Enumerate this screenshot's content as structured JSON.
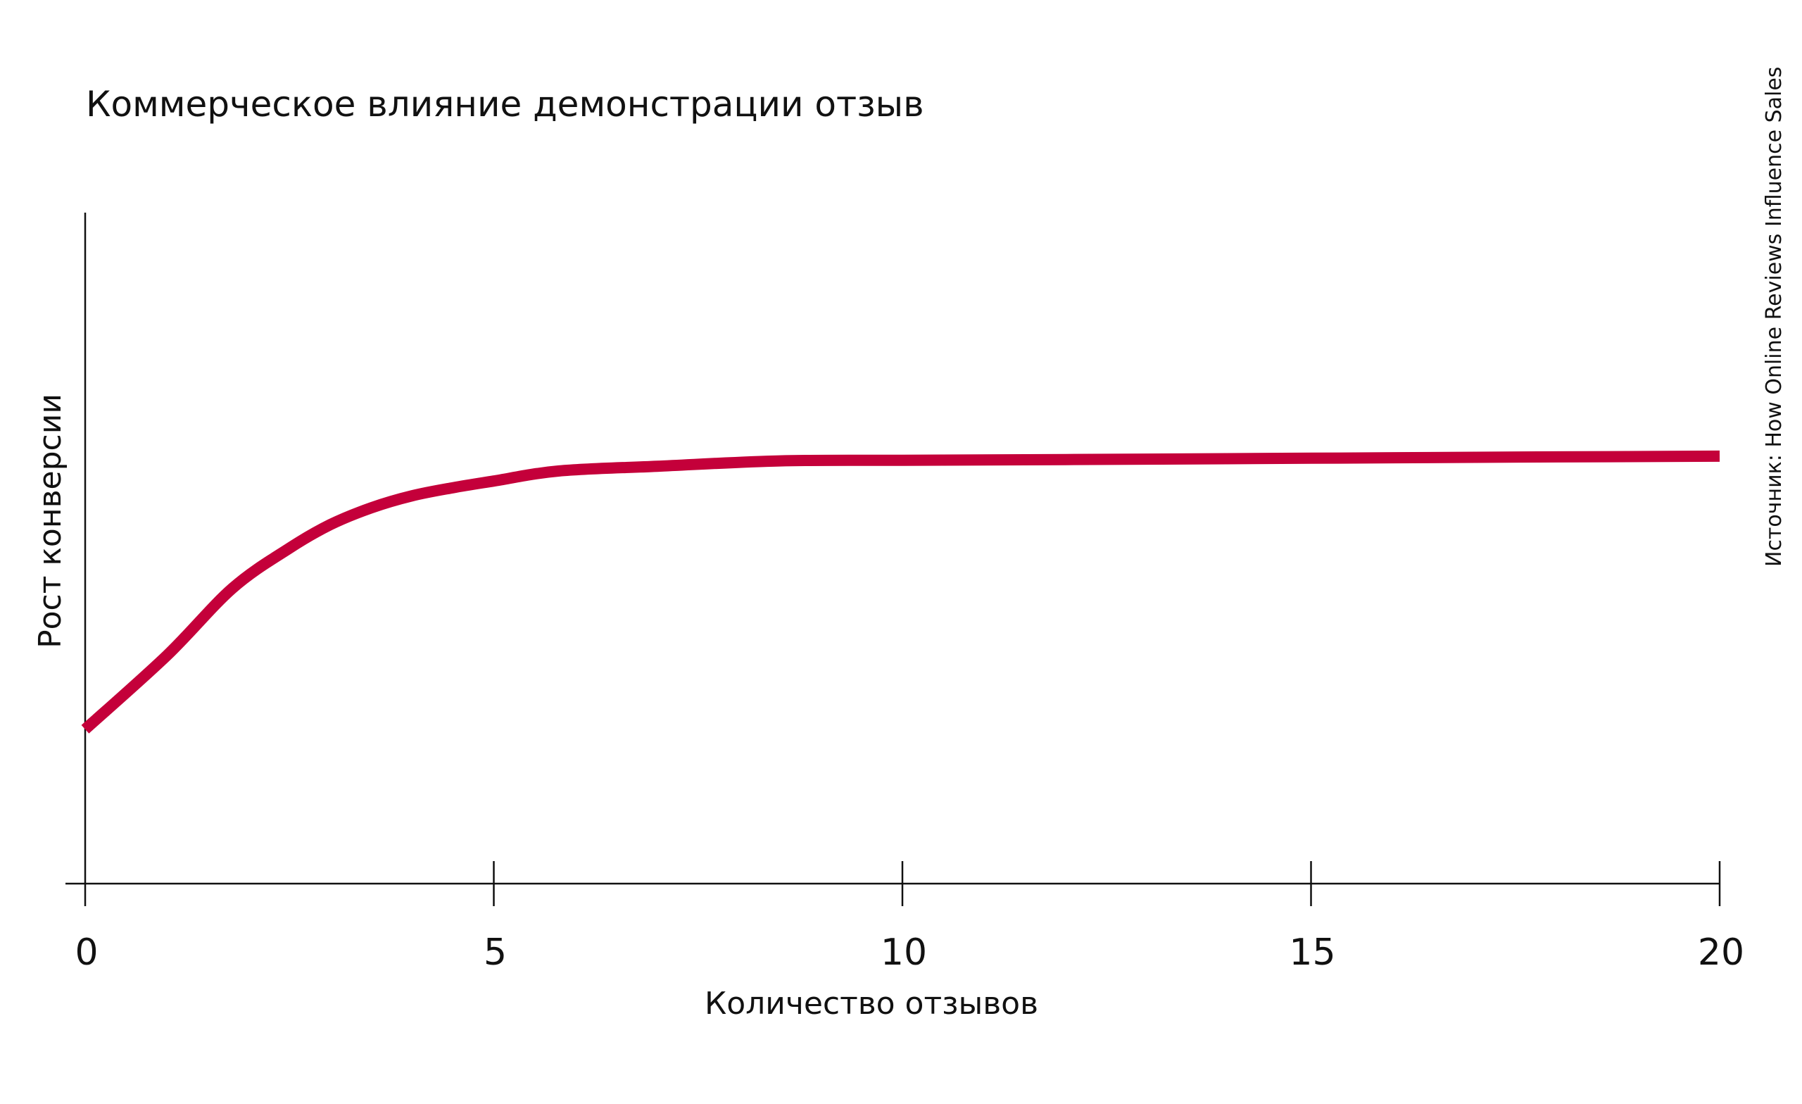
{
  "chart_data": {
    "type": "line",
    "title": "Коммерческое влияние демонстрации отзыв",
    "xlabel": "Количество отзывов",
    "ylabel": "Рост конверсии",
    "source": "Источник: How Online Reviews Influence Sales",
    "xlim": [
      0,
      20
    ],
    "ylim": [
      0,
      10
    ],
    "x_ticks": [
      0,
      5,
      10,
      15,
      20
    ],
    "x_tick_labels": [
      "0",
      "5",
      "10",
      "15",
      "20"
    ],
    "y_ticks_shown": false,
    "grid": false,
    "legend": "none",
    "series": [
      {
        "color": "#c4003a",
        "x": [
          0,
          1,
          1.8,
          2.5,
          3,
          3.5,
          4,
          4.5,
          5,
          5.8,
          7,
          8.5,
          10,
          12,
          15,
          18,
          20
        ],
        "y": [
          2.3,
          3.4,
          4.4,
          5.0,
          5.35,
          5.6,
          5.78,
          5.9,
          6.0,
          6.15,
          6.22,
          6.3,
          6.31,
          6.32,
          6.34,
          6.36,
          6.37
        ]
      }
    ]
  }
}
